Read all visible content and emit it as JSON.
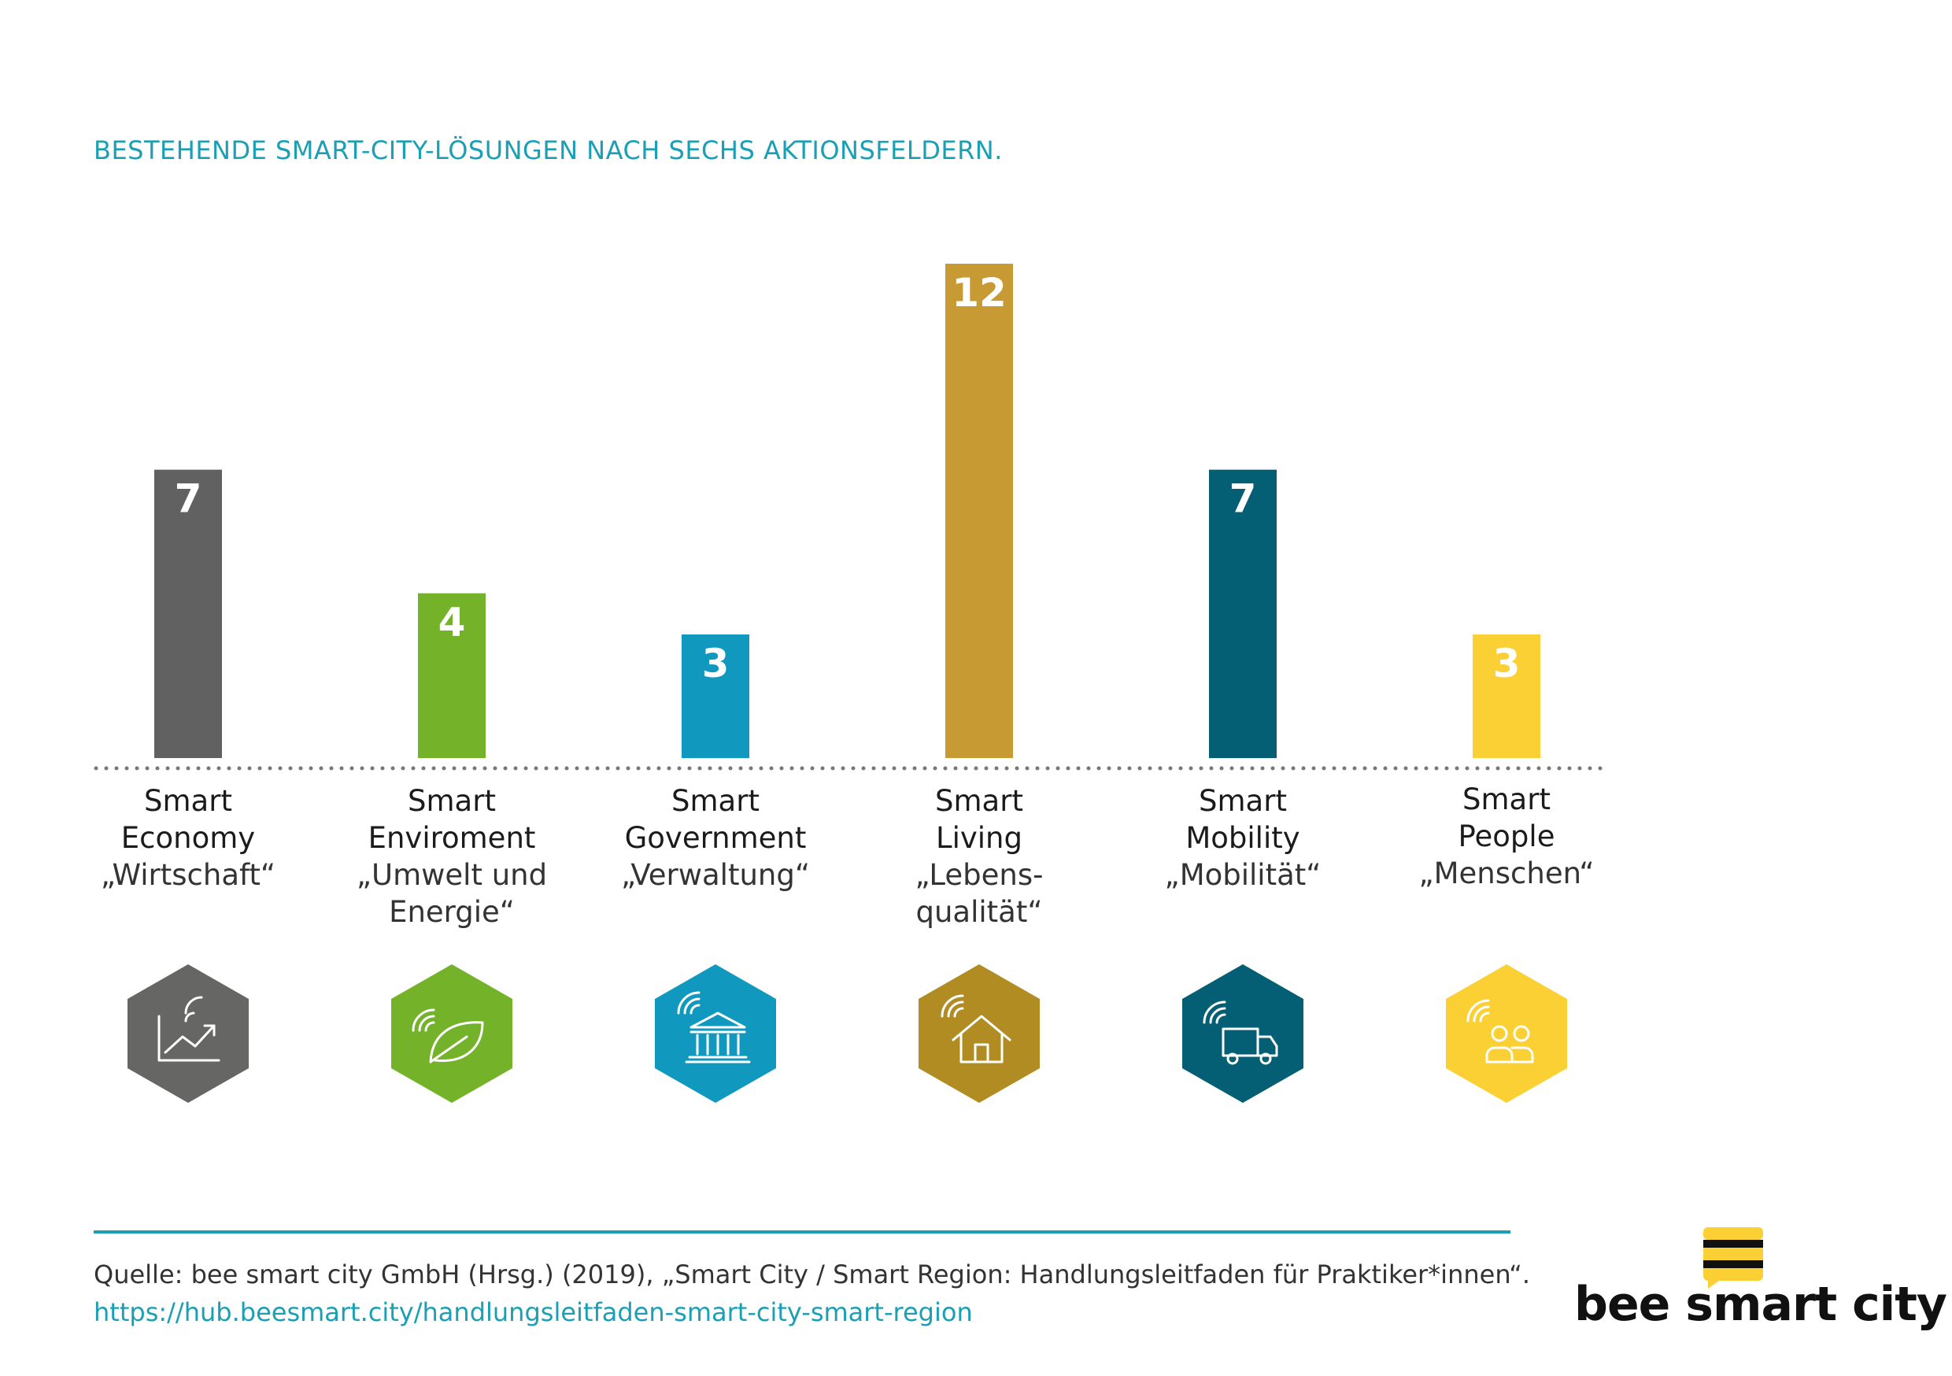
{
  "title": "BESTEHENDE SMART-CITY-LÖSUNGEN NACH SECHS AKTIONSFELDERN.",
  "chart_data": {
    "type": "bar",
    "categories": [
      "Smart Economy",
      "Smart Enviroment",
      "Smart Government",
      "Smart Living",
      "Smart Mobility",
      "Smart People"
    ],
    "values": [
      7,
      4,
      3,
      12,
      7,
      3
    ],
    "colors": [
      "#616161",
      "#74b22a",
      "#1198bf",
      "#c79a33",
      "#045e74",
      "#fbd035"
    ],
    "data_labels": [
      "7",
      "4",
      "3",
      "12",
      "7",
      "3"
    ],
    "ylim": [
      0,
      12
    ],
    "grid": false,
    "baseline_style": "dotted"
  },
  "categories": [
    {
      "line1": "Smart",
      "line2": "Economy",
      "de1": "„Wirtschaft“",
      "de2": "",
      "icon": "chart-growth-icon",
      "hex_color": "#666664"
    },
    {
      "line1": "Smart",
      "line2": "Enviroment",
      "de1": "„Umwelt und",
      "de2": "Energie“",
      "icon": "leaf-icon",
      "hex_color": "#74b22a"
    },
    {
      "line1": "Smart",
      "line2": "Government",
      "de1": "„Verwaltung“",
      "de2": "",
      "icon": "government-building-icon",
      "hex_color": "#1198bf"
    },
    {
      "line1": "Smart",
      "line2": "Living",
      "de1": "„Lebens-",
      "de2": "qualität“",
      "icon": "house-icon",
      "hex_color": "#b08c23"
    },
    {
      "line1": "Smart",
      "line2": "Mobility",
      "de1": "„Mobilität“",
      "de2": "",
      "icon": "truck-icon",
      "hex_color": "#045e74"
    },
    {
      "line1": "Smart",
      "line2": "People",
      "de1": "„Menschen“",
      "de2": "",
      "icon": "people-icon",
      "hex_color": "#fbd035"
    }
  ],
  "footer": {
    "source": "Quelle: bee smart city GmbH (Hrsg.) (2019), „Smart City / Smart Region: Handlungsleitfaden für Praktiker*innen“.",
    "url": "https://hub.beesmart.city/handlungsleitfaden-smart-city-smart-region"
  },
  "brand": {
    "name": "bee smart city",
    "logo_color": "#fbd035"
  }
}
